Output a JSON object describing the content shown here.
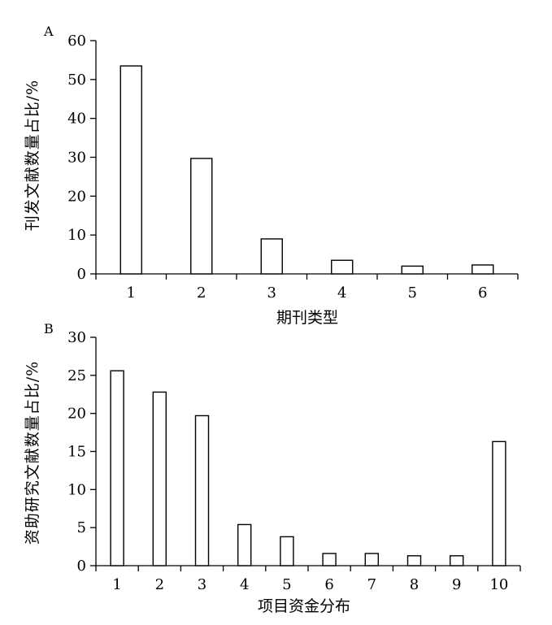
{
  "chart_data": [
    {
      "panel_label": "A",
      "type": "bar",
      "categories": [
        "1",
        "2",
        "3",
        "4",
        "5",
        "6"
      ],
      "values": [
        53.5,
        29.7,
        9.0,
        3.5,
        2.0,
        2.3
      ],
      "yticks": [
        "0",
        "10",
        "20",
        "30",
        "40",
        "50",
        "60"
      ],
      "ylim": [
        0,
        60
      ],
      "xlabel": "期刊类型",
      "ylabel": "刊发文献数量占比/%",
      "grid": false,
      "legend": "none"
    },
    {
      "panel_label": "B",
      "type": "bar",
      "categories": [
        "1",
        "2",
        "3",
        "4",
        "5",
        "6",
        "7",
        "8",
        "9",
        "10"
      ],
      "values": [
        25.6,
        22.8,
        19.7,
        5.4,
        3.8,
        1.6,
        1.6,
        1.3,
        1.3,
        16.3
      ],
      "yticks": [
        "0",
        "5",
        "10",
        "15",
        "20",
        "25",
        "30"
      ],
      "ylim": [
        0,
        30
      ],
      "xlabel": "项目资金分布",
      "ylabel": "资助研究文献数量占比/%",
      "grid": false,
      "legend": "none"
    }
  ]
}
